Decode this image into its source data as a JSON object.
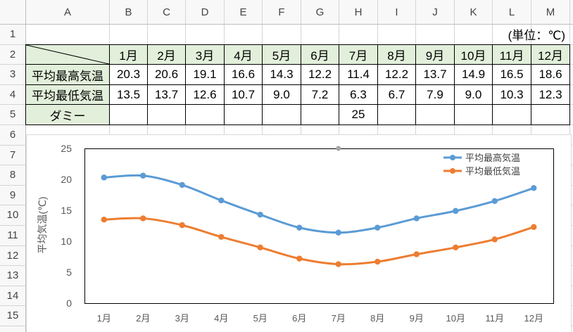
{
  "sheet": {
    "columns": [
      "A",
      "B",
      "C",
      "D",
      "E",
      "F",
      "G",
      "H",
      "I",
      "J",
      "K",
      "L",
      "M"
    ],
    "rows": [
      "1",
      "2",
      "3",
      "4",
      "5",
      "6",
      "7",
      "8",
      "9",
      "10",
      "11",
      "12",
      "13",
      "14",
      "15"
    ],
    "unit_note": "(単位：℃)",
    "months": [
      "1月",
      "2月",
      "3月",
      "4月",
      "5月",
      "6月",
      "7月",
      "8月",
      "9月",
      "10月",
      "11月",
      "12月"
    ],
    "labels": {
      "max": "平均最高気温",
      "min": "平均最低気温",
      "dummy": "ダミー"
    },
    "max_values": [
      "20.3",
      "20.6",
      "19.1",
      "16.6",
      "14.3",
      "12.2",
      "11.4",
      "12.2",
      "13.7",
      "14.9",
      "16.5",
      "18.6"
    ],
    "min_values": [
      "13.5",
      "13.7",
      "12.6",
      "10.7",
      "9.0",
      "7.2",
      "6.3",
      "6.7",
      "7.9",
      "9.0",
      "10.3",
      "12.3"
    ],
    "dummy_values": [
      "",
      "",
      "",
      "",
      "",
      "",
      "25",
      "",
      "",
      "",
      "",
      ""
    ]
  },
  "chart_data": {
    "type": "line",
    "categories": [
      "1月",
      "2月",
      "3月",
      "4月",
      "5月",
      "6月",
      "7月",
      "8月",
      "9月",
      "10月",
      "11月",
      "12月"
    ],
    "series": [
      {
        "name": "平均最高気温",
        "values": [
          20.3,
          20.6,
          19.1,
          16.6,
          14.3,
          12.2,
          11.4,
          12.2,
          13.7,
          14.9,
          16.5,
          18.6
        ],
        "color": "#5B9BD5"
      },
      {
        "name": "平均最低気温",
        "values": [
          13.5,
          13.7,
          12.6,
          10.7,
          9.0,
          7.2,
          6.3,
          6.7,
          7.9,
          9.0,
          10.3,
          12.3
        ],
        "color": "#ED7D31"
      },
      {
        "values": [
          null,
          null,
          null,
          null,
          null,
          null,
          25,
          null,
          null,
          null,
          null,
          null
        ],
        "color": "#A5A5A5"
      }
    ],
    "xlabel": "",
    "ylabel": "平均気温(℃)",
    "ylim": [
      0,
      25
    ],
    "yticks": [
      0,
      5,
      10,
      15,
      20,
      25
    ],
    "smooth": true,
    "grid": false,
    "legend": "top-right"
  },
  "colors": {
    "header_fill": "#E2EFDA",
    "table_border": "#000000",
    "gridline": "#D4D4D4"
  }
}
